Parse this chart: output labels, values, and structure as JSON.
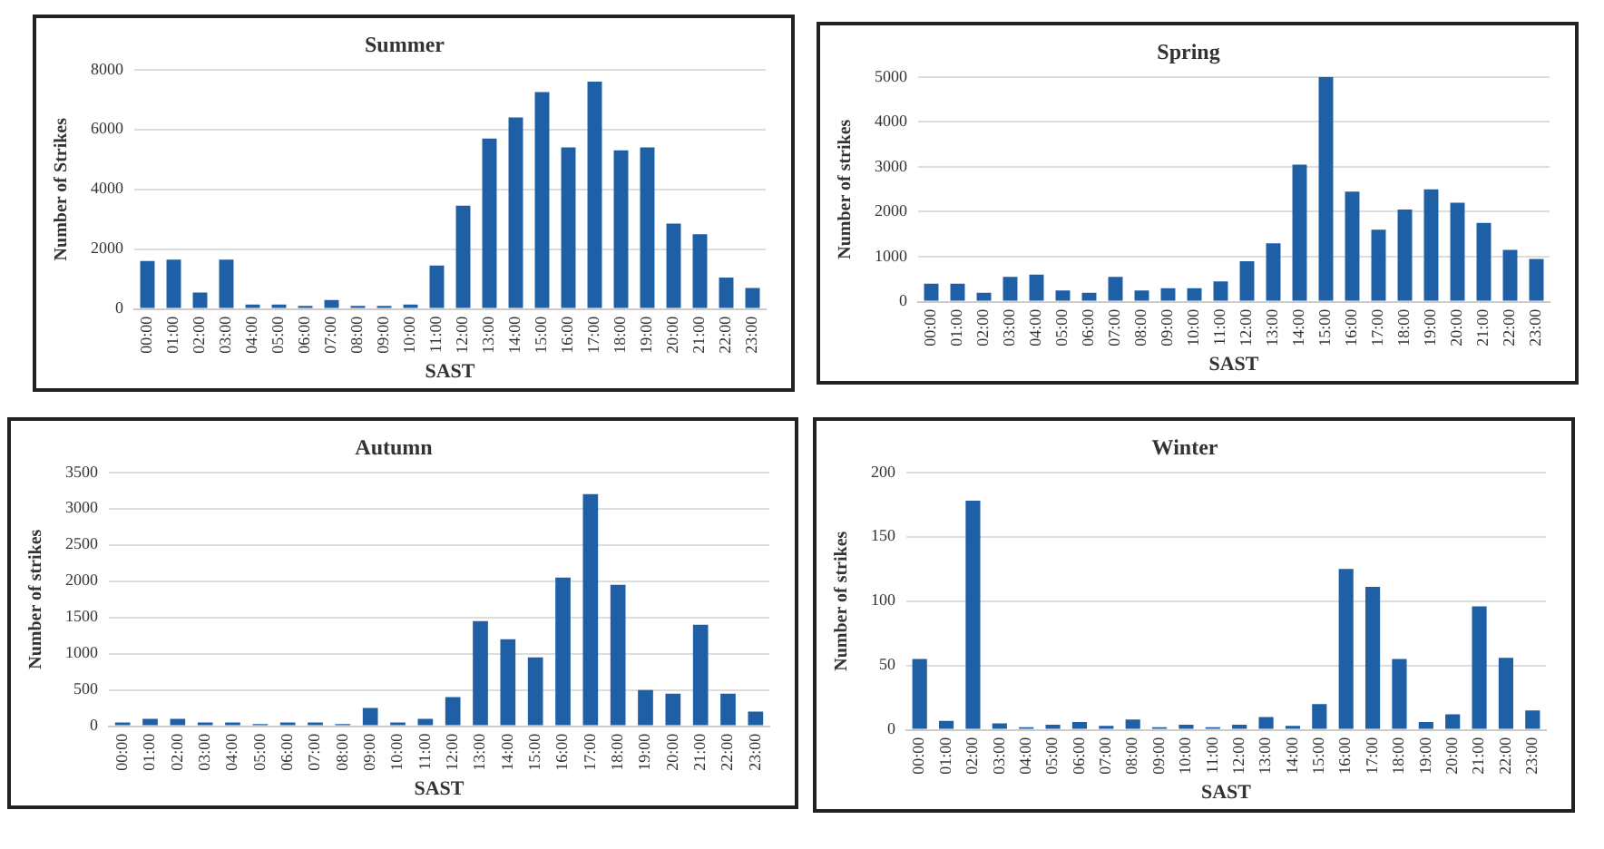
{
  "chart_data": [
    {
      "type": "bar",
      "title": "Summer",
      "xlabel": "SAST",
      "ylabel": "Number of Strikes",
      "categories": [
        "00:00",
        "01:00",
        "02:00",
        "03:00",
        "04:00",
        "05:00",
        "06:00",
        "07:00",
        "08:00",
        "09:00",
        "10:00",
        "11:00",
        "12:00",
        "13:00",
        "14:00",
        "15:00",
        "16:00",
        "17:00",
        "18:00",
        "19:00",
        "20:00",
        "21:00",
        "22:00",
        "23:00"
      ],
      "values": [
        1600,
        1650,
        550,
        1650,
        150,
        150,
        100,
        300,
        100,
        100,
        150,
        1450,
        3450,
        5700,
        6400,
        7250,
        5400,
        7600,
        5300,
        5400,
        2850,
        2500,
        1050,
        700
      ],
      "color": "#1f5fa6",
      "ylim": [
        0,
        8000
      ],
      "yticks": [
        0,
        2000,
        4000,
        6000,
        8000
      ],
      "grid": "y"
    },
    {
      "type": "bar",
      "title": "Spring",
      "xlabel": "SAST",
      "ylabel": "Number of strikes",
      "categories": [
        "00:00",
        "01:00",
        "02:00",
        "03:00",
        "04:00",
        "05:00",
        "06:00",
        "07:00",
        "08:00",
        "09:00",
        "10:00",
        "11:00",
        "12:00",
        "13:00",
        "14:00",
        "15:00",
        "16:00",
        "17:00",
        "18:00",
        "19:00",
        "20:00",
        "21:00",
        "22:00",
        "23:00"
      ],
      "values": [
        400,
        400,
        200,
        550,
        600,
        250,
        200,
        550,
        250,
        300,
        300,
        450,
        900,
        1300,
        3050,
        5000,
        2450,
        1600,
        2050,
        2500,
        2200,
        1750,
        1150,
        950
      ],
      "color": "#1f5fa6",
      "ylim": [
        0,
        5000
      ],
      "yticks": [
        0,
        1000,
        2000,
        3000,
        4000,
        5000
      ],
      "grid": "y"
    },
    {
      "type": "bar",
      "title": "Autumn",
      "xlabel": "SAST",
      "ylabel": "Number of strikes",
      "categories": [
        "00:00",
        "01:00",
        "02:00",
        "03:00",
        "04:00",
        "05:00",
        "06:00",
        "07:00",
        "08:00",
        "09:00",
        "10:00",
        "11:00",
        "12:00",
        "13:00",
        "14:00",
        "15:00",
        "16:00",
        "17:00",
        "18:00",
        "19:00",
        "20:00",
        "21:00",
        "22:00",
        "23:00"
      ],
      "values": [
        50,
        100,
        100,
        50,
        50,
        30,
        50,
        50,
        30,
        250,
        50,
        100,
        400,
        1450,
        1200,
        950,
        2050,
        3200,
        1950,
        500,
        450,
        1400,
        450,
        200
      ],
      "color": "#1f5fa6",
      "ylim": [
        0,
        3500
      ],
      "yticks": [
        0,
        500,
        1000,
        1500,
        2000,
        2500,
        3000,
        3500
      ],
      "grid": "y"
    },
    {
      "type": "bar",
      "title": "Winter",
      "xlabel": "SAST",
      "ylabel": "Number of strikes",
      "categories": [
        "00:00",
        "01:00",
        "02:00",
        "03:00",
        "04:00",
        "05:00",
        "06:00",
        "07:00",
        "08:00",
        "09:00",
        "10:00",
        "11:00",
        "12:00",
        "13:00",
        "14:00",
        "15:00",
        "16:00",
        "17:00",
        "18:00",
        "19:00",
        "20:00",
        "21:00",
        "22:00",
        "23:00"
      ],
      "values": [
        55,
        7,
        178,
        5,
        2,
        4,
        6,
        3,
        8,
        2,
        4,
        2,
        4,
        10,
        3,
        20,
        125,
        111,
        55,
        6,
        12,
        96,
        56,
        15
      ],
      "color": "#1f5fa6",
      "ylim": [
        0,
        200
      ],
      "yticks": [
        0,
        50,
        100,
        150,
        200
      ],
      "grid": "y"
    }
  ]
}
